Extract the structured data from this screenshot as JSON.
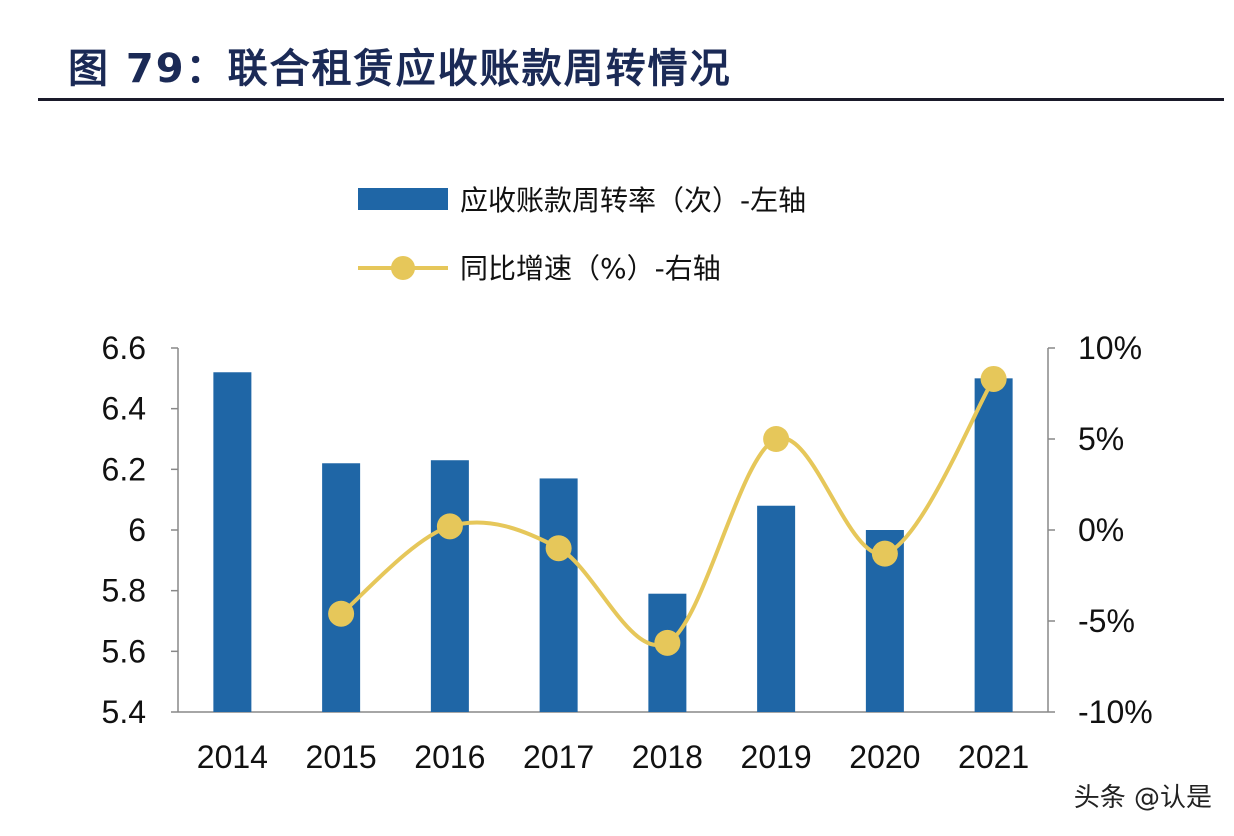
{
  "title": "图 79：联合租赁应收账款周转情况",
  "watermark": "头条 @认是",
  "colors": {
    "bar": "#1f66a6",
    "line": "#e6c75a",
    "title": "#1b2a56"
  },
  "chart_data": {
    "type": "bar+line",
    "categories": [
      "2014",
      "2015",
      "2016",
      "2017",
      "2018",
      "2019",
      "2020",
      "2021"
    ],
    "series": [
      {
        "name": "应收账款周转率（次）-左轴",
        "type": "bar",
        "axis": "left",
        "values": [
          6.52,
          6.22,
          6.23,
          6.17,
          5.79,
          6.08,
          6.0,
          6.5
        ]
      },
      {
        "name": "同比增速（%）-右轴",
        "type": "line",
        "axis": "right",
        "values": [
          null,
          -4.6,
          0.2,
          -1.0,
          -6.2,
          5.0,
          -1.3,
          8.3
        ]
      }
    ],
    "y_left": {
      "range": [
        5.4,
        6.6
      ],
      "ticks": [
        "6.6",
        "6.4",
        "6.2",
        "6",
        "5.8",
        "5.6",
        "5.4"
      ]
    },
    "y_right": {
      "range": [
        -10,
        10
      ],
      "ticks": [
        "10%",
        "5%",
        "0%",
        "-5%",
        "-10%"
      ]
    },
    "legend_placement": "top",
    "grid": false
  }
}
